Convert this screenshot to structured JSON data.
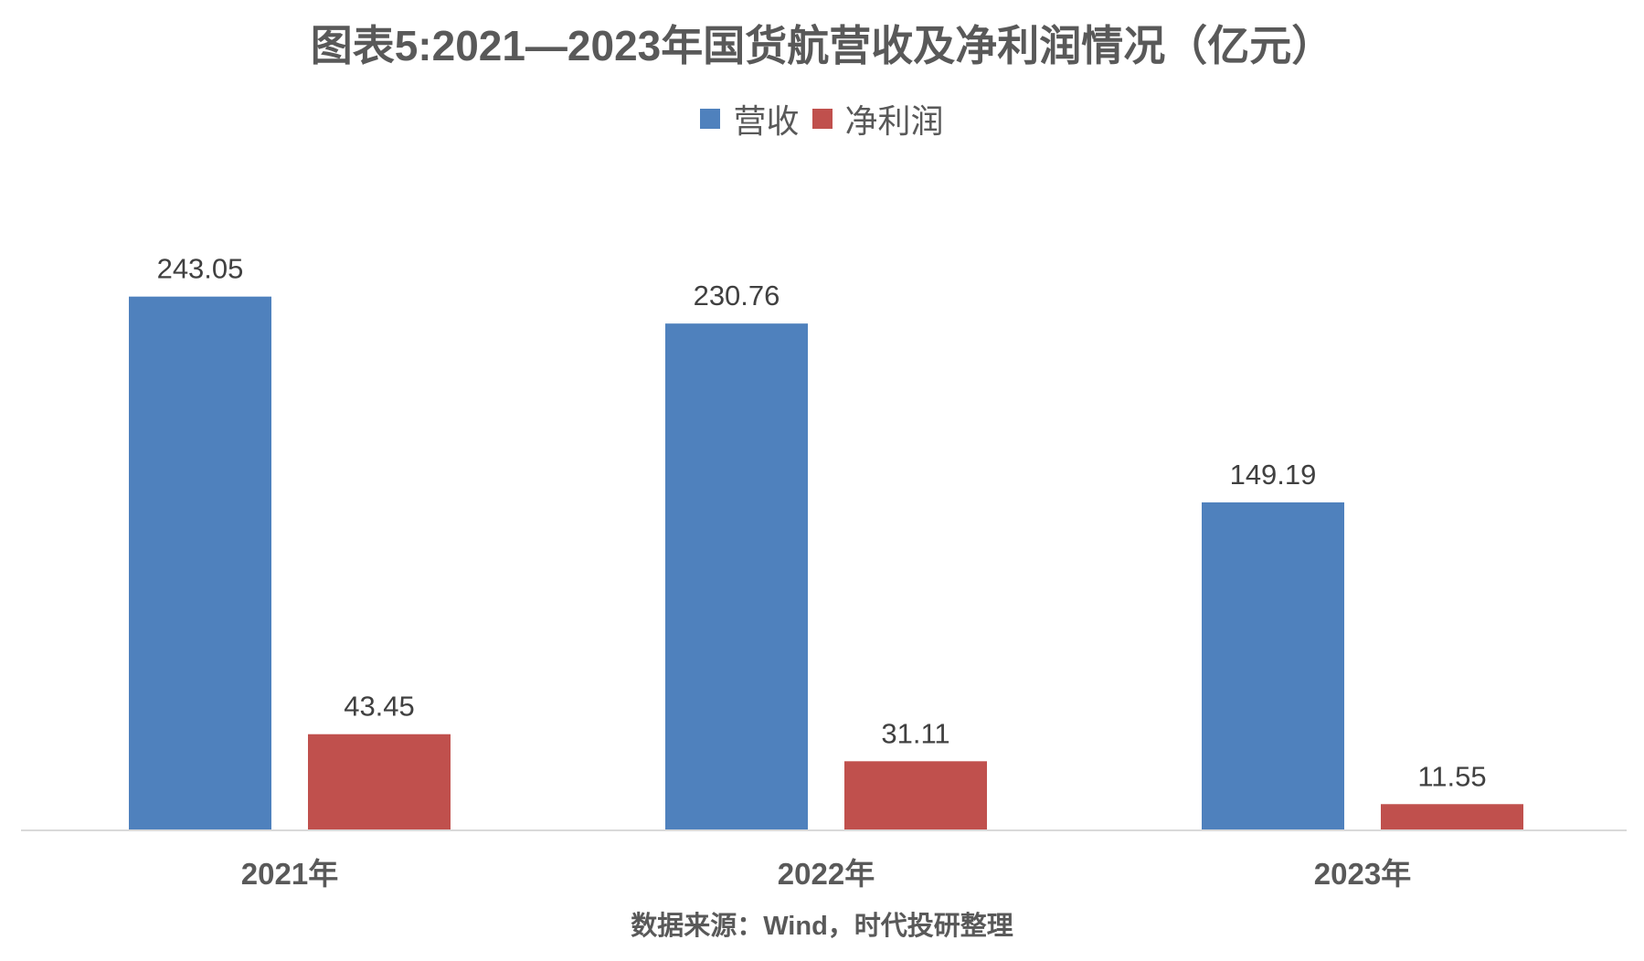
{
  "chart_data": {
    "type": "bar",
    "title": "图表5:2021—2023年国货航营收及净利润情况（亿元）",
    "categories": [
      "2021年",
      "2022年",
      "2023年"
    ],
    "series": [
      {
        "name": "营收",
        "color": "#4F81BD",
        "values": [
          243.05,
          230.76,
          149.19
        ],
        "labels": [
          "243.05",
          "230.76",
          "149.19"
        ]
      },
      {
        "name": "净利润",
        "color": "#C0504D",
        "values": [
          43.45,
          31.11,
          11.55
        ],
        "labels": [
          "43.45",
          "31.11",
          "11.55"
        ]
      }
    ],
    "xlabel": "",
    "ylabel": "",
    "ylim": [
      0,
      270
    ],
    "grid": false,
    "legend_position": "top-center",
    "source": "数据来源：Wind，时代投研整理"
  }
}
